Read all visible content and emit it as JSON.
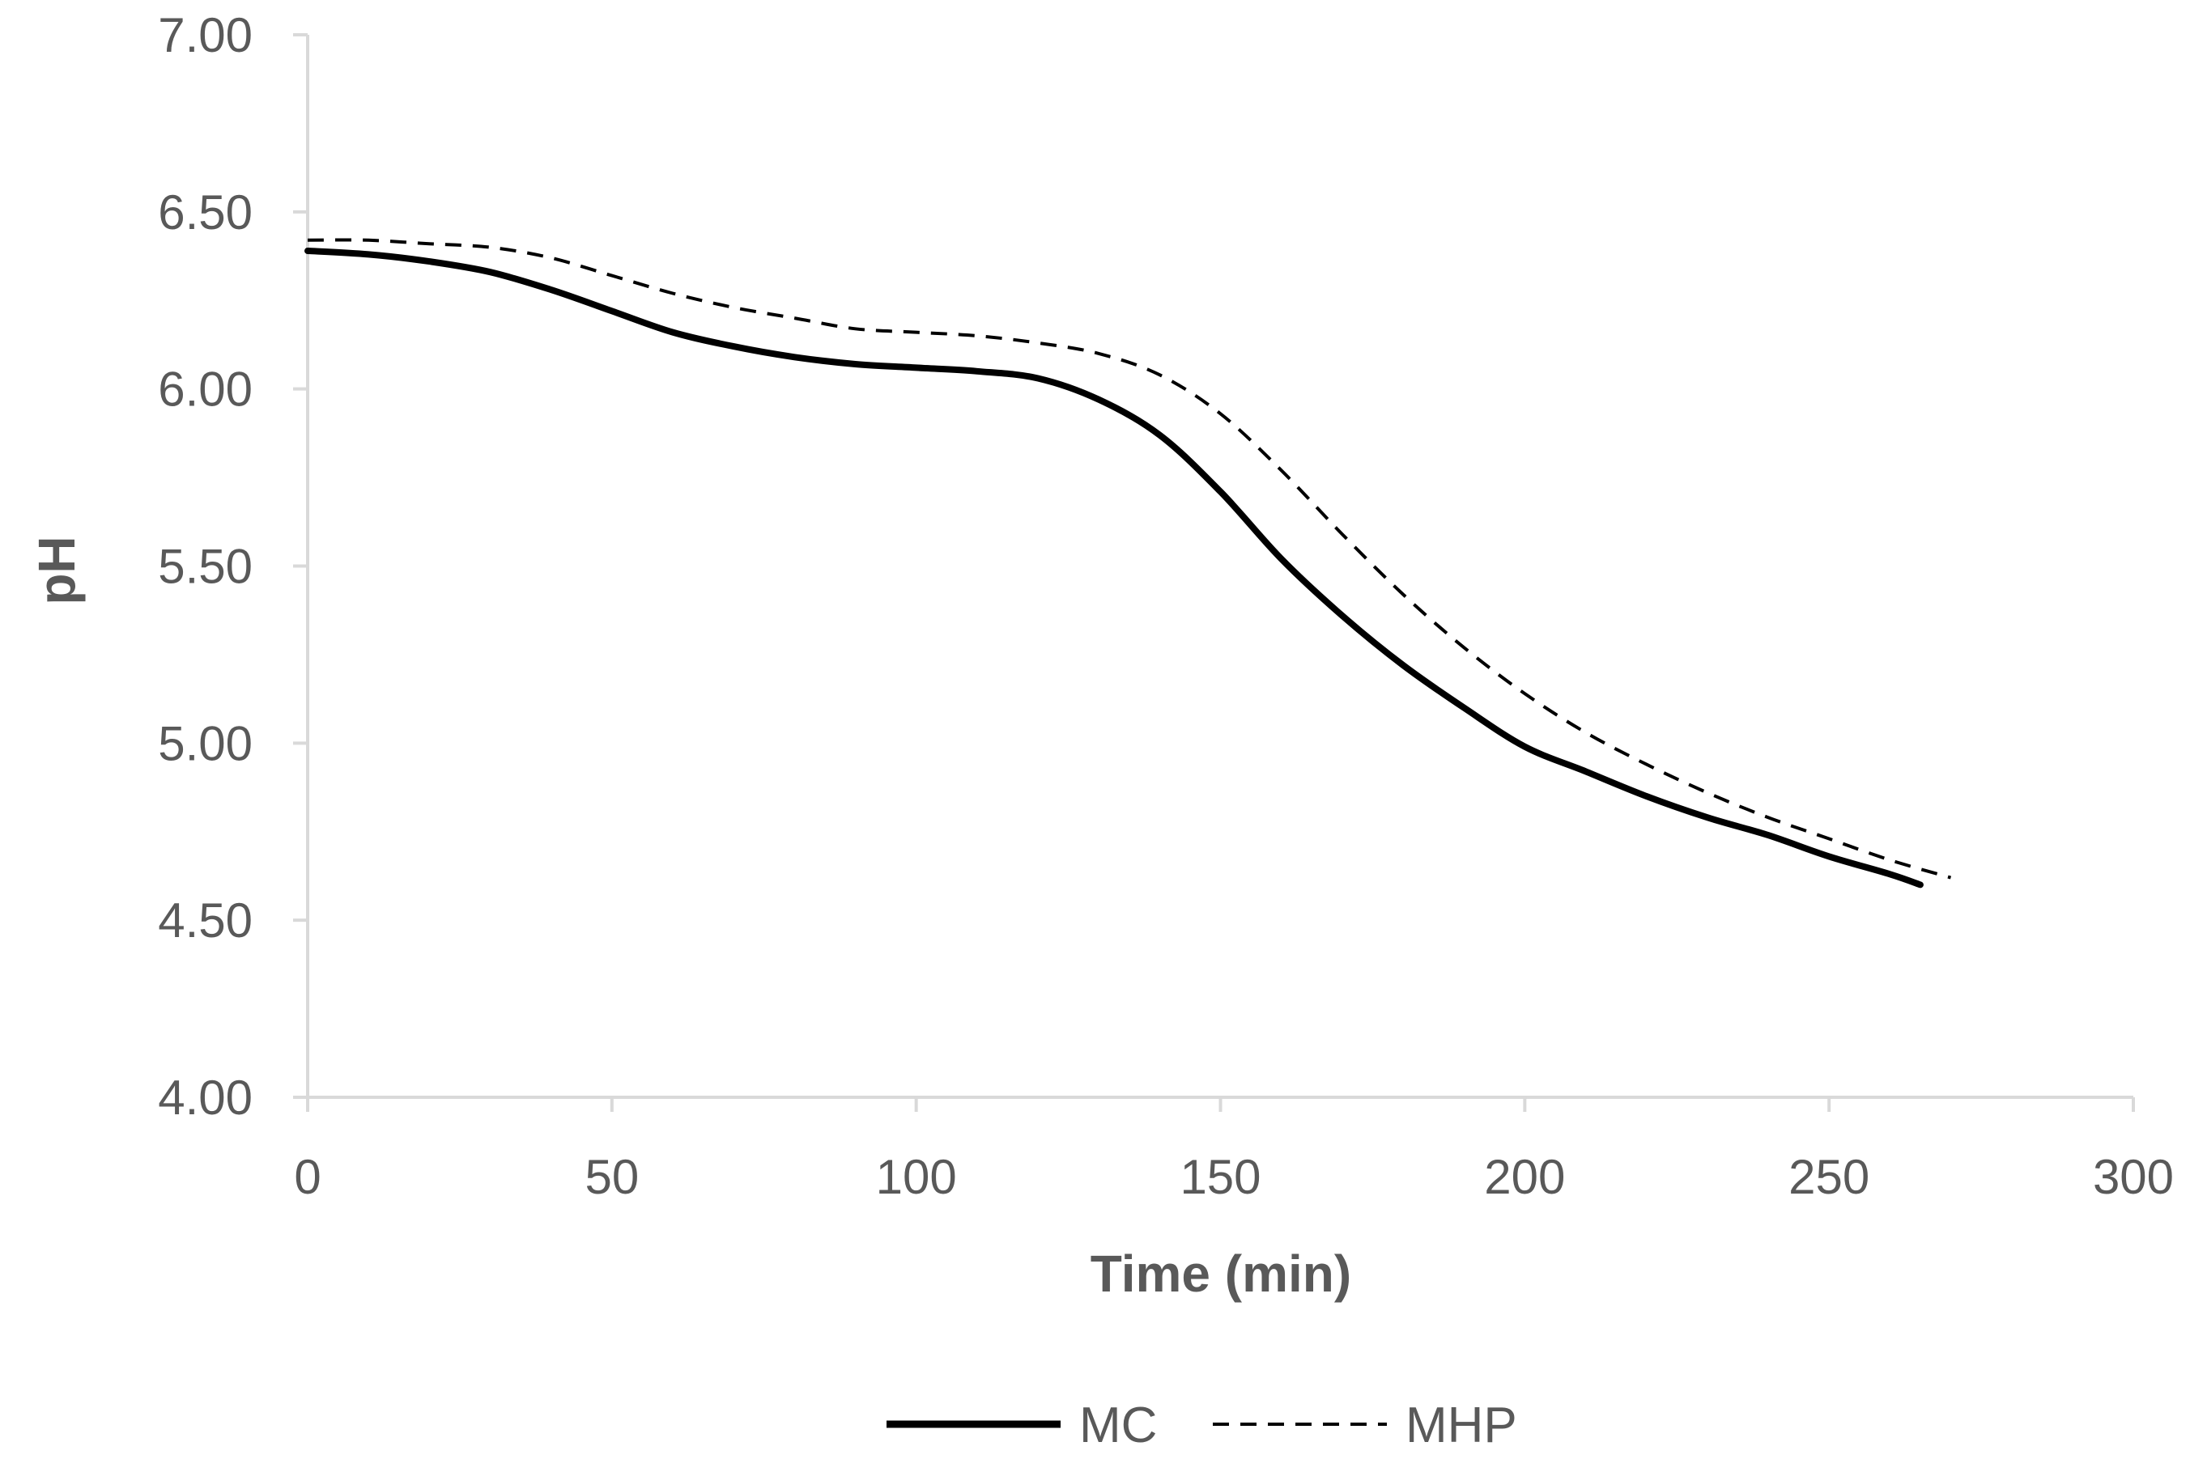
{
  "chart_data": {
    "type": "line",
    "title": "",
    "xlabel": "Time (min)",
    "ylabel": "pH",
    "xlim": [
      0,
      300
    ],
    "ylim": [
      4.0,
      7.0
    ],
    "xticks": [
      0,
      50,
      100,
      150,
      200,
      250,
      300
    ],
    "xtick_labels": [
      "0",
      "50",
      "100",
      "150",
      "200",
      "250",
      "300"
    ],
    "yticks": [
      4.0,
      4.5,
      5.0,
      5.5,
      6.0,
      6.5,
      7.0
    ],
    "ytick_labels": [
      "4.00",
      "4.50",
      "5.00",
      "5.50",
      "6.00",
      "6.50",
      "7.00"
    ],
    "grid": false,
    "legend_position": "bottom-center",
    "series": [
      {
        "name": "MC",
        "style": "solid",
        "color": "#000000",
        "x": [
          0,
          10,
          20,
          30,
          40,
          50,
          60,
          70,
          80,
          90,
          100,
          110,
          120,
          130,
          140,
          150,
          160,
          170,
          180,
          190,
          200,
          210,
          220,
          230,
          240,
          250,
          260,
          265
        ],
        "y": [
          6.39,
          6.38,
          6.36,
          6.33,
          6.28,
          6.22,
          6.16,
          6.12,
          6.09,
          6.07,
          6.06,
          6.05,
          6.03,
          5.97,
          5.87,
          5.71,
          5.52,
          5.36,
          5.22,
          5.1,
          4.99,
          4.92,
          4.85,
          4.79,
          4.74,
          4.68,
          4.63,
          4.6
        ]
      },
      {
        "name": "MHP",
        "style": "dashed",
        "color": "#000000",
        "x": [
          0,
          10,
          20,
          30,
          40,
          50,
          60,
          70,
          80,
          90,
          100,
          110,
          120,
          130,
          140,
          150,
          160,
          170,
          180,
          190,
          200,
          210,
          220,
          230,
          240,
          250,
          260,
          270
        ],
        "y": [
          6.42,
          6.42,
          6.41,
          6.4,
          6.37,
          6.32,
          6.27,
          6.23,
          6.2,
          6.17,
          6.16,
          6.15,
          6.13,
          6.1,
          6.04,
          5.93,
          5.77,
          5.59,
          5.42,
          5.27,
          5.14,
          5.03,
          4.94,
          4.86,
          4.79,
          4.73,
          4.67,
          4.62
        ]
      }
    ]
  }
}
